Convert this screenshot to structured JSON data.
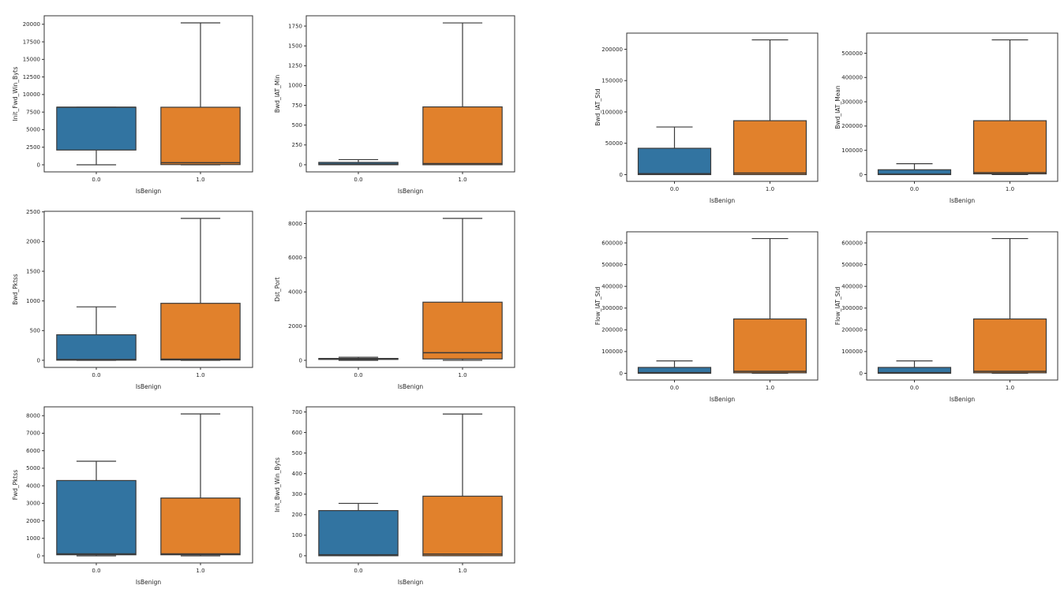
{
  "figure": {
    "background": "#ffffff",
    "axis_color": "#333333",
    "tick_label_color": "#262626",
    "box_edge_color": "#3a3a3a",
    "palette": {
      "isbenign_0": "#3274a1",
      "isbenign_1": "#e1812c"
    }
  },
  "chart_data": [
    {
      "type": "box",
      "group": "left",
      "ylabel": "Init_Fwd_Win_Byts",
      "xlabel": "IsBenign",
      "categories": [
        "0.0",
        "1.0"
      ],
      "ylim": [
        -1010,
        21210
      ],
      "yticks": [
        0,
        2500,
        5000,
        7500,
        10000,
        12500,
        15000,
        17500,
        20000
      ],
      "boxes": [
        {
          "category": "0.0",
          "color": "#3274a1",
          "whisker_low": 0,
          "q1": 2100,
          "median": 8192,
          "q3": 8192,
          "whisker_high": 8192
        },
        {
          "category": "1.0",
          "color": "#e1812c",
          "whisker_low": 0,
          "q1": 30,
          "median": 290,
          "q3": 8192,
          "whisker_high": 20200
        }
      ]
    },
    {
      "type": "box",
      "group": "left",
      "ylabel": "Bwd_IAT_Min",
      "xlabel": "IsBenign",
      "categories": [
        "0.0",
        "1.0"
      ],
      "ylim": [
        -90,
        1880
      ],
      "yticks": [
        0,
        250,
        500,
        750,
        1000,
        1250,
        1500,
        1750
      ],
      "boxes": [
        {
          "category": "0.0",
          "color": "#3274a1",
          "whisker_low": 0,
          "q1": 0,
          "median": 8,
          "q3": 30,
          "whisker_high": 65
        },
        {
          "category": "1.0",
          "color": "#e1812c",
          "whisker_low": 0,
          "q1": 0,
          "median": 15,
          "q3": 730,
          "whisker_high": 1790
        }
      ]
    },
    {
      "type": "box",
      "group": "right",
      "ylabel": "Bwd_IAT_Std",
      "xlabel": "IsBenign",
      "categories": [
        "0.0",
        "1.0"
      ],
      "ylim": [
        -10750,
        225750
      ],
      "yticks": [
        0,
        50000,
        100000,
        150000,
        200000
      ],
      "boxes": [
        {
          "category": "0.0",
          "color": "#3274a1",
          "whisker_low": 0,
          "q1": 0,
          "median": 1500,
          "q3": 42000,
          "whisker_high": 76000
        },
        {
          "category": "1.0",
          "color": "#e1812c",
          "whisker_low": 0,
          "q1": 0,
          "median": 2500,
          "q3": 86000,
          "whisker_high": 215000
        }
      ]
    },
    {
      "type": "box",
      "group": "right",
      "ylabel": "Bwd_IAT_Mean",
      "xlabel": "IsBenign",
      "categories": [
        "0.0",
        "1.0"
      ],
      "ylim": [
        -27750,
        582750
      ],
      "yticks": [
        0,
        100000,
        200000,
        300000,
        400000,
        500000
      ],
      "boxes": [
        {
          "category": "0.0",
          "color": "#3274a1",
          "whisker_low": 0,
          "q1": 0,
          "median": 2000,
          "q3": 20000,
          "whisker_high": 45000
        },
        {
          "category": "1.0",
          "color": "#e1812c",
          "whisker_low": 0,
          "q1": 3000,
          "median": 8000,
          "q3": 222000,
          "whisker_high": 555000
        }
      ]
    },
    {
      "type": "box",
      "group": "left",
      "ylabel": "Bwd_Pktss",
      "xlabel": "IsBenign",
      "categories": [
        "0.0",
        "1.0"
      ],
      "ylim": [
        -120,
        2510
      ],
      "yticks": [
        0,
        500,
        1000,
        1500,
        2000,
        2500
      ],
      "boxes": [
        {
          "category": "0.0",
          "color": "#3274a1",
          "whisker_low": 0,
          "q1": 2,
          "median": 12,
          "q3": 430,
          "whisker_high": 900
        },
        {
          "category": "1.0",
          "color": "#e1812c",
          "whisker_low": 0,
          "q1": 5,
          "median": 20,
          "q3": 960,
          "whisker_high": 2390
        }
      ]
    },
    {
      "type": "box",
      "group": "left",
      "ylabel": "Dst_Port",
      "xlabel": "IsBenign",
      "categories": [
        "0.0",
        "1.0"
      ],
      "ylim": [
        -415,
        8715
      ],
      "yticks": [
        0,
        2000,
        4000,
        6000,
        8000
      ],
      "boxes": [
        {
          "category": "0.0",
          "color": "#3274a1",
          "whisker_low": 0,
          "q1": 53,
          "median": 80,
          "q3": 110,
          "whisker_high": 180
        },
        {
          "category": "1.0",
          "color": "#e1812c",
          "whisker_low": 0,
          "q1": 80,
          "median": 443,
          "q3": 3400,
          "whisker_high": 8300
        }
      ]
    },
    {
      "type": "box",
      "group": "right",
      "ylabel": "Flow_IAT_Std",
      "xlabel": "IsBenign",
      "categories": [
        "0.0",
        "1.0"
      ],
      "ylim": [
        -31000,
        651000
      ],
      "yticks": [
        0,
        100000,
        200000,
        300000,
        400000,
        500000,
        600000
      ],
      "boxes": [
        {
          "category": "0.0",
          "color": "#3274a1",
          "whisker_low": 0,
          "q1": 0,
          "median": 3000,
          "q3": 27000,
          "whisker_high": 57000
        },
        {
          "category": "1.0",
          "color": "#e1812c",
          "whisker_low": 0,
          "q1": 2000,
          "median": 9000,
          "q3": 250000,
          "whisker_high": 620000
        }
      ]
    },
    {
      "type": "box",
      "group": "right",
      "ylabel": "Flow_IAT_Std",
      "xlabel": "IsBenign",
      "categories": [
        "0.0",
        "1.0"
      ],
      "ylim": [
        -31000,
        651000
      ],
      "yticks": [
        0,
        100000,
        200000,
        300000,
        400000,
        500000,
        600000
      ],
      "boxes": [
        {
          "category": "0.0",
          "color": "#3274a1",
          "whisker_low": 0,
          "q1": 0,
          "median": 3000,
          "q3": 27000,
          "whisker_high": 57000
        },
        {
          "category": "1.0",
          "color": "#e1812c",
          "whisker_low": 0,
          "q1": 2000,
          "median": 9000,
          "q3": 250000,
          "whisker_high": 620000
        }
      ]
    },
    {
      "type": "box",
      "group": "left",
      "ylabel": "Fwd_Pktss",
      "xlabel": "IsBenign",
      "categories": [
        "0.0",
        "1.0"
      ],
      "ylim": [
        -405,
        8505
      ],
      "yticks": [
        0,
        1000,
        2000,
        3000,
        4000,
        5000,
        6000,
        7000,
        8000
      ],
      "boxes": [
        {
          "category": "0.0",
          "color": "#3274a1",
          "whisker_low": 0,
          "q1": 60,
          "median": 115,
          "q3": 4300,
          "whisker_high": 5400
        },
        {
          "category": "1.0",
          "color": "#e1812c",
          "whisker_low": 0,
          "q1": 60,
          "median": 110,
          "q3": 3300,
          "whisker_high": 8100
        }
      ]
    },
    {
      "type": "box",
      "group": "left",
      "ylabel": "Init_Bwd_Win_Byts",
      "xlabel": "IsBenign",
      "categories": [
        "0.0",
        "1.0"
      ],
      "ylim": [
        -35,
        725
      ],
      "yticks": [
        0,
        100,
        200,
        300,
        400,
        500,
        600,
        700
      ],
      "boxes": [
        {
          "category": "0.0",
          "color": "#3274a1",
          "whisker_low": 0,
          "q1": 0,
          "median": 5,
          "q3": 220,
          "whisker_high": 255
        },
        {
          "category": "1.0",
          "color": "#e1812c",
          "whisker_low": 0,
          "q1": 0,
          "median": 8,
          "q3": 290,
          "whisker_high": 690
        }
      ]
    }
  ]
}
